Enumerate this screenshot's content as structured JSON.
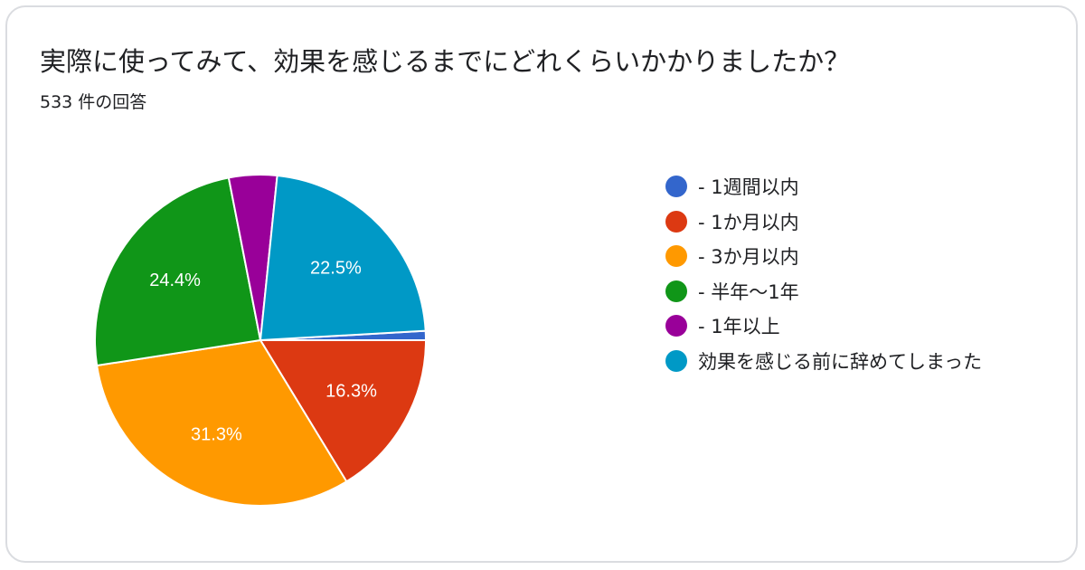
{
  "chart_data": {
    "type": "pie",
    "title": "実際に使ってみて、効果を感じるまでにどれくらいかかりましたか？",
    "subtitle": "533 件の回答",
    "legend_position": "right",
    "slices": [
      {
        "label": "- 1週間以内",
        "value": 0.9,
        "data_label": "",
        "color": "#3366cc"
      },
      {
        "label": "- 1か月以内",
        "value": 16.3,
        "data_label": "16.3%",
        "color": "#dc3912"
      },
      {
        "label": "- 3か月以内",
        "value": 31.3,
        "data_label": "31.3%",
        "color": "#ff9900"
      },
      {
        "label": "- 半年〜1年",
        "value": 24.4,
        "data_label": "24.4%",
        "color": "#109618"
      },
      {
        "label": "- 1年以上",
        "value": 4.7,
        "data_label": "",
        "color": "#990099"
      },
      {
        "label": "効果を感じる前に辞めてしまった",
        "value": 22.5,
        "data_label": "22.5%",
        "color": "#0099c6"
      }
    ]
  }
}
